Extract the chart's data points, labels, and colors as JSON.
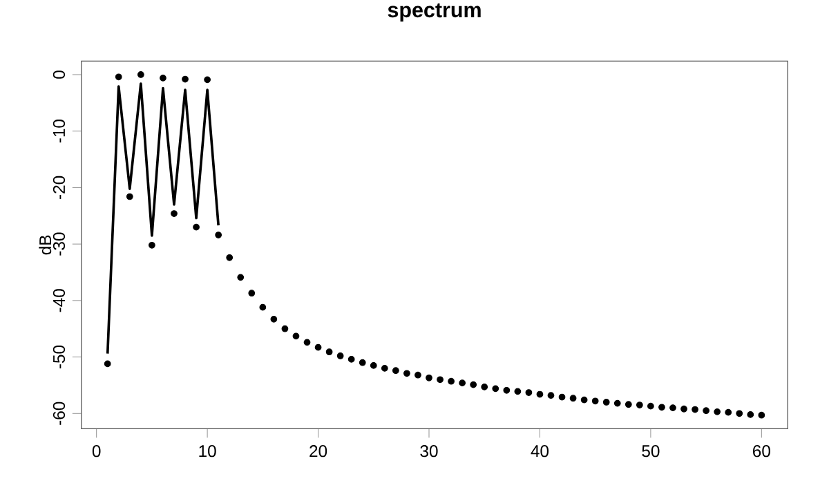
{
  "chart_data": {
    "type": "scatter",
    "title": "spectrum",
    "ylabel": "dB",
    "xlim": [
      -1.36,
      62.36
    ],
    "ylim": [
      -62.7,
      2.4
    ],
    "xticks": [
      0,
      10,
      20,
      30,
      40,
      50,
      60
    ],
    "yticks": [
      0,
      -10,
      -20,
      -30,
      -40,
      -50,
      -60
    ],
    "series": [
      {
        "type": "scatter",
        "color": "#000000",
        "marker": "circle",
        "x": [
          1,
          2,
          3,
          4,
          5,
          6,
          7,
          8,
          9,
          10,
          11,
          12,
          13,
          14,
          15,
          16,
          17,
          18,
          19,
          20,
          21,
          22,
          23,
          24,
          25,
          26,
          27,
          28,
          29,
          30,
          31,
          32,
          33,
          34,
          35,
          36,
          37,
          38,
          39,
          40,
          41,
          42,
          43,
          44,
          45,
          46,
          47,
          48,
          49,
          50,
          51,
          52,
          53,
          54,
          55,
          56,
          57,
          58,
          59,
          60
        ],
        "values": [
          -51.2,
          -0.4,
          -21.6,
          0,
          -30.2,
          -0.6,
          -24.6,
          -0.8,
          -27.0,
          -0.9,
          -28.4,
          -32.4,
          -35.9,
          -38.7,
          -41.2,
          -43.3,
          -45.0,
          -46.3,
          -47.4,
          -48.3,
          -49.1,
          -49.8,
          -50.4,
          -51.0,
          -51.5,
          -52.0,
          -52.4,
          -52.9,
          -53.2,
          -53.7,
          -54.0,
          -54.3,
          -54.6,
          -54.9,
          -55.3,
          -55.6,
          -55.9,
          -56.1,
          -56.3,
          -56.6,
          -56.8,
          -57.1,
          -57.3,
          -57.6,
          -57.8,
          -58.0,
          -58.2,
          -58.4,
          -58.5,
          -58.7,
          -58.9,
          -59.0,
          -59.2,
          -59.3,
          -59.5,
          -59.7,
          -59.8,
          -60.0,
          -60.2,
          -60.3
        ]
      },
      {
        "type": "line",
        "color": "#000000",
        "marker": "none",
        "line_style": "solid",
        "x": [
          1,
          2,
          3,
          4,
          5,
          6,
          7,
          8,
          9,
          10,
          11
        ],
        "values": [
          -49.4,
          -2.1,
          -20.2,
          -1.6,
          -28.5,
          -2.4,
          -23.0,
          -2.7,
          -25.4,
          -2.7,
          -26.7
        ]
      }
    ]
  }
}
